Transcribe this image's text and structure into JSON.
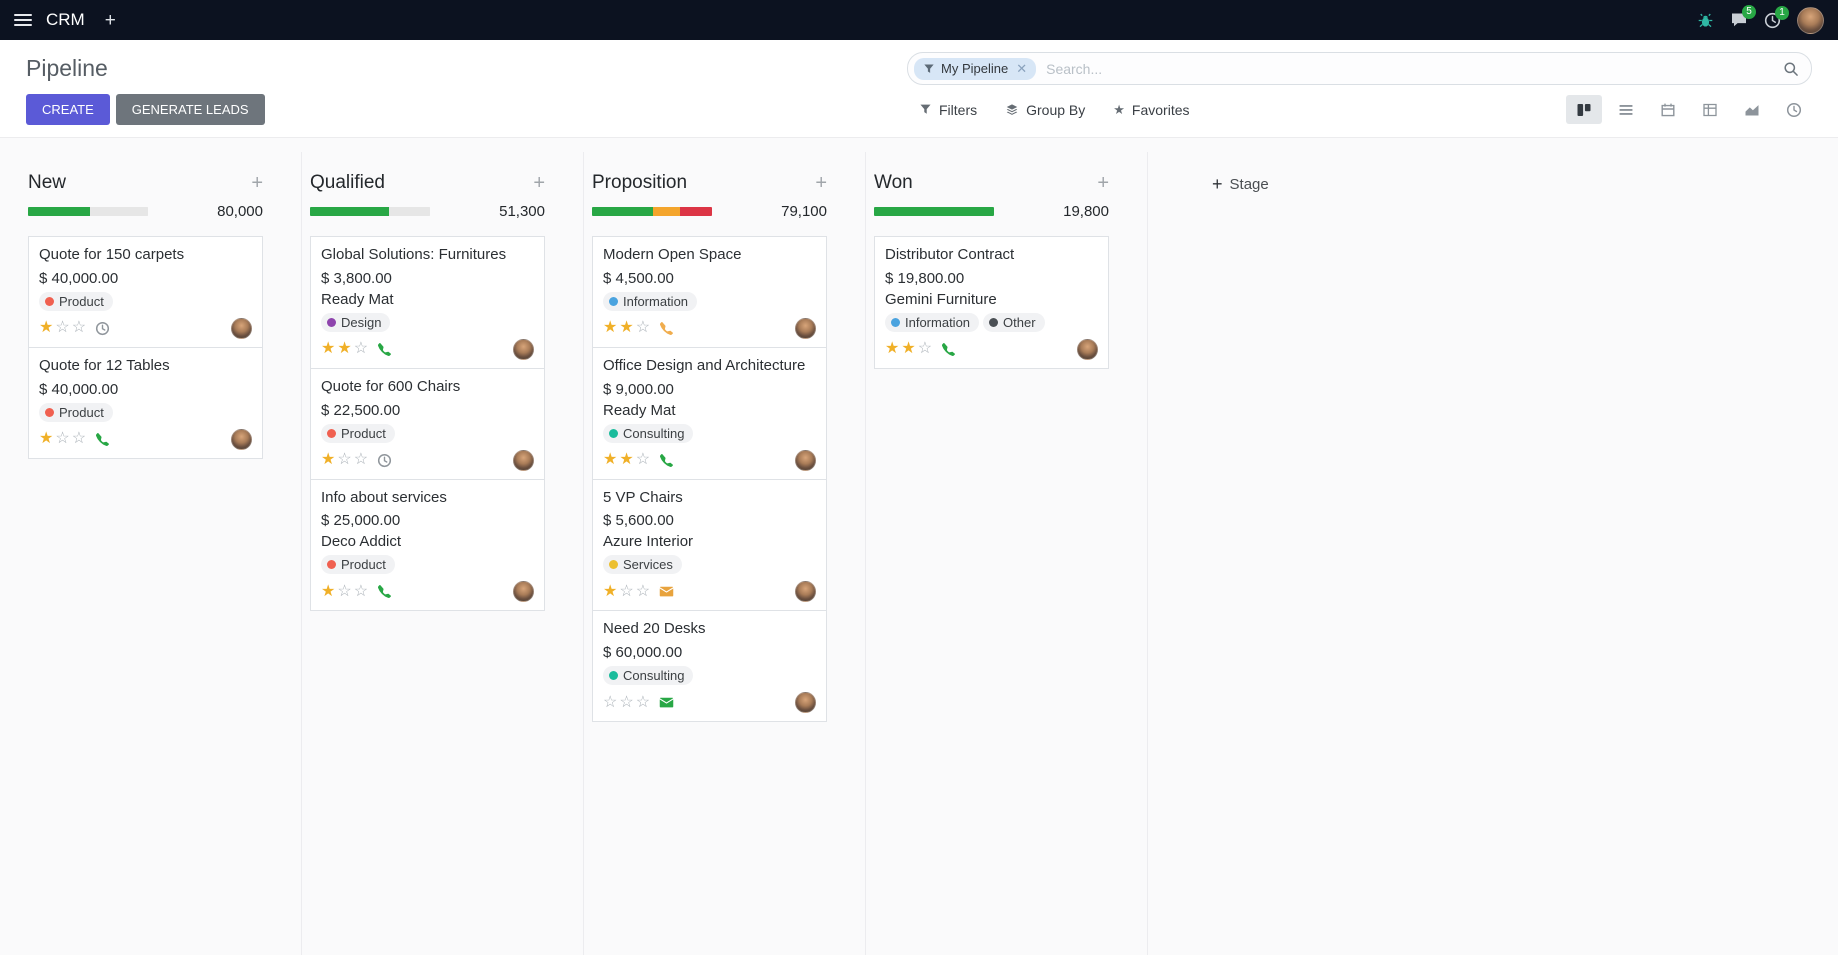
{
  "topbar": {
    "app_name": "CRM",
    "systray": {
      "messages_badge": "5",
      "activities_badge": "1"
    }
  },
  "control_panel": {
    "title": "Pipeline",
    "search": {
      "facet_label": "My Pipeline",
      "placeholder": "Search..."
    },
    "actions": {
      "create": "CREATE",
      "generate_leads": "GENERATE LEADS"
    },
    "filter_buttons": {
      "filters": "Filters",
      "group_by": "Group By",
      "favorites": "Favorites"
    },
    "view_switcher": {
      "views": [
        "kanban",
        "list",
        "calendar",
        "pivot",
        "graph",
        "activity"
      ],
      "active": "kanban"
    }
  },
  "kanban": {
    "add_stage_label": "Stage",
    "columns": [
      {
        "title": "New",
        "total": "80,000",
        "progress": [
          {
            "color": "#28a745",
            "pct": 52
          },
          {
            "color": "#e6e6e6",
            "pct": 48
          }
        ],
        "cards": [
          {
            "title": "Quote for 150 carpets",
            "amount": "$ 40,000.00",
            "partner": "",
            "tags": [
              {
                "label": "Product",
                "color": "#f06050"
              }
            ],
            "stars": 1,
            "activity": {
              "type": "clock",
              "color": "#8f959b"
            }
          },
          {
            "title": "Quote for 12 Tables",
            "amount": "$ 40,000.00",
            "partner": "",
            "tags": [
              {
                "label": "Product",
                "color": "#f06050"
              }
            ],
            "stars": 1,
            "activity": {
              "type": "phone",
              "color": "#28a745"
            }
          }
        ]
      },
      {
        "title": "Qualified",
        "total": "51,300",
        "progress": [
          {
            "color": "#28a745",
            "pct": 66
          },
          {
            "color": "#e6e6e6",
            "pct": 34
          }
        ],
        "cards": [
          {
            "title": "Global Solutions: Furnitures",
            "amount": "$ 3,800.00",
            "partner": "Ready Mat",
            "tags": [
              {
                "label": "Design",
                "color": "#8e44ad"
              }
            ],
            "stars": 2,
            "activity": {
              "type": "phone",
              "color": "#28a745"
            }
          },
          {
            "title": "Quote for 600 Chairs",
            "amount": "$ 22,500.00",
            "partner": "",
            "tags": [
              {
                "label": "Product",
                "color": "#f06050"
              }
            ],
            "stars": 1,
            "activity": {
              "type": "clock",
              "color": "#8f959b"
            }
          },
          {
            "title": "Info about services",
            "amount": "$ 25,000.00",
            "partner": "Deco Addict",
            "tags": [
              {
                "label": "Product",
                "color": "#f06050"
              }
            ],
            "stars": 1,
            "activity": {
              "type": "phone",
              "color": "#28a745"
            }
          }
        ]
      },
      {
        "title": "Proposition",
        "total": "79,100",
        "progress": [
          {
            "color": "#28a745",
            "pct": 51
          },
          {
            "color": "#f4a52c",
            "pct": 22
          },
          {
            "color": "#dc3545",
            "pct": 27
          }
        ],
        "cards": [
          {
            "title": "Modern Open Space",
            "amount": "$ 4,500.00",
            "partner": "",
            "tags": [
              {
                "label": "Information",
                "color": "#4aa3df"
              }
            ],
            "stars": 2,
            "activity": {
              "type": "phone",
              "color": "#f0ad4e"
            }
          },
          {
            "title": "Office Design and Architecture",
            "amount": "$ 9,000.00",
            "partner": "Ready Mat",
            "tags": [
              {
                "label": "Consulting",
                "color": "#1abc9c"
              }
            ],
            "stars": 2,
            "activity": {
              "type": "phone",
              "color": "#28a745"
            }
          },
          {
            "title": "5 VP Chairs",
            "amount": "$ 5,600.00",
            "partner": "Azure Interior",
            "tags": [
              {
                "label": "Services",
                "color": "#ecc030"
              }
            ],
            "stars": 1,
            "activity": {
              "type": "mail",
              "color": "#e8a33d"
            }
          },
          {
            "title": "Need 20 Desks",
            "amount": "$ 60,000.00",
            "partner": "",
            "tags": [
              {
                "label": "Consulting",
                "color": "#1abc9c"
              }
            ],
            "stars": 0,
            "activity": {
              "type": "mail",
              "color": "#28a745"
            }
          }
        ]
      },
      {
        "title": "Won",
        "total": "19,800",
        "progress": [
          {
            "color": "#28a745",
            "pct": 100
          }
        ],
        "cards": [
          {
            "title": "Distributor Contract",
            "amount": "$ 19,800.00",
            "partner": "Gemini Furniture",
            "tags": [
              {
                "label": "Information",
                "color": "#4aa3df"
              },
              {
                "label": "Other",
                "color": "#4a4f54"
              }
            ],
            "stars": 2,
            "activity": {
              "type": "phone",
              "color": "#28a745"
            }
          }
        ]
      }
    ]
  }
}
